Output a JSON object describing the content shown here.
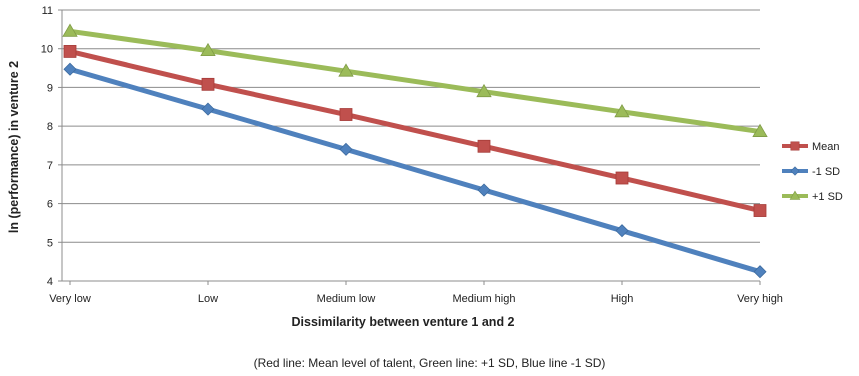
{
  "chart_data": {
    "type": "line",
    "categories": [
      "Very low",
      "Low",
      "Medium low",
      "Medium high",
      "High",
      "Very high"
    ],
    "series": [
      {
        "name": "Mean",
        "color": "#C0504D",
        "marker": "square",
        "values": [
          9.93,
          9.08,
          8.3,
          7.48,
          6.66,
          5.82
        ]
      },
      {
        "name": "-1 SD",
        "color": "#4F81BD",
        "marker": "diamond",
        "values": [
          9.47,
          8.44,
          7.4,
          6.35,
          5.3,
          4.24
        ]
      },
      {
        "name": "+1 SD",
        "color": "#9BBB59",
        "marker": "triangle",
        "values": [
          10.45,
          9.95,
          9.42,
          8.89,
          8.37,
          7.86
        ]
      }
    ],
    "xlabel": "Dissimilarity between venture 1 and 2",
    "ylabel": "ln (performance) in venture 2",
    "ylim": [
      4,
      11
    ],
    "yticks": [
      4,
      5,
      6,
      7,
      8,
      9,
      10,
      11
    ],
    "grid": true,
    "legend": "right"
  },
  "caption": "(Red line: Mean level of talent, Green line: +1 SD, Blue line -1 SD)"
}
